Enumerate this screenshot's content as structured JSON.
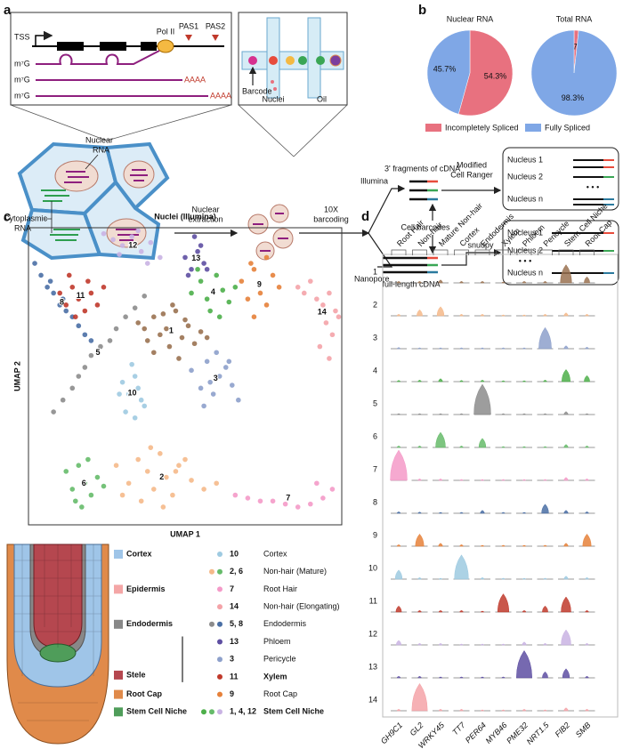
{
  "panel_labels": [
    "a",
    "b",
    "c",
    "d"
  ],
  "schematic": {
    "gene": {
      "tss": "TSS",
      "pol": "Pol II",
      "pas": [
        "PAS1",
        "PAS2"
      ],
      "cap": [
        "m⁷G",
        "m⁷G",
        "m⁷G"
      ],
      "polya": [
        "AAAA",
        "AAAA"
      ]
    },
    "droplet": {
      "barcode": "Barcode",
      "nuclei": "Nuclei",
      "oil": "Oil"
    },
    "cell": {
      "nuclear_rna": [
        "Nuclear",
        "RNA"
      ],
      "cytoplasmic_rna": [
        "Cytoplasmic",
        "RNA"
      ]
    },
    "steps": {
      "extraction": [
        "Nuclear",
        "extraction"
      ],
      "barcoding": [
        "10X",
        "barcoding"
      ],
      "illumina": "Illumina",
      "nanopore": "Nanopore",
      "fragments": "3' fragments of cDNA",
      "full_length": "full-length cDNA",
      "cell_barcodes": "Cell barcodes",
      "cell_ranger": [
        "Modified",
        "Cell Ranger"
      ],
      "snuupy": "snuupy"
    },
    "outputs": [
      {
        "nuclei": [
          "Nucleus 1",
          "Nucleus 2",
          "Nucleus n"
        ],
        "ellipsis": "• • •"
      },
      {
        "nuclei": [
          "Nucleus 1",
          "Nucleus 2",
          "Nucleus n"
        ],
        "ellipsis": "• • •"
      }
    ]
  },
  "root_legend": {
    "tissues": [
      {
        "name": "Cortex",
        "color": "#9fc5e8"
      },
      {
        "name": "Epidermis",
        "color": "#f4a6a6"
      },
      {
        "name": "Endodermis",
        "color": "#888888"
      },
      {
        "name": "Stele",
        "color": "#b5474f"
      },
      {
        "name": "Root Cap",
        "color": "#e08a4a"
      },
      {
        "name": "Stem Cell Niche",
        "color": "#4f9d5a"
      }
    ],
    "clusters": [
      {
        "ids": "10",
        "name": "Cortex",
        "colors": [
          "#9ecae1"
        ]
      },
      {
        "ids": "2, 6",
        "name": "Non-hair (Mature)",
        "colors": [
          "#f5b98a",
          "#66bb6a"
        ]
      },
      {
        "ids": "7",
        "name": "Root Hair",
        "colors": [
          "#f49ac8"
        ]
      },
      {
        "ids": "14",
        "name": "Non-hair (Elongating)",
        "colors": [
          "#f4a3a8"
        ]
      },
      {
        "ids": "5, 8",
        "name": "Endodermis",
        "colors": [
          "#8c8c8c",
          "#4a6fa5"
        ]
      },
      {
        "ids": "13",
        "name": "Phloem",
        "colors": [
          "#5e4fa2"
        ]
      },
      {
        "ids": "3",
        "name": "Pericycle",
        "colors": [
          "#8da0cb"
        ]
      },
      {
        "ids": "11",
        "name": "Xylem",
        "colors": [
          "#c0392b"
        ]
      },
      {
        "ids": "9",
        "name": "Root Cap",
        "colors": [
          "#e6813a"
        ]
      },
      {
        "ids": "1, 4, 12",
        "name": "Stem Cell Niche",
        "colors": [
          "#4daf4a",
          "#66bb6a",
          "#c9b3e3"
        ]
      }
    ]
  },
  "chart_data": [
    {
      "type": "pie",
      "title": "Nuclear RNA",
      "categories": [
        "Incompletely Spliced",
        "Fully Spliced"
      ],
      "values": [
        54.3,
        45.7
      ],
      "value_labels": [
        "54.3%",
        "45.7%"
      ],
      "colors": [
        "#e8717f",
        "#7fa7e6"
      ]
    },
    {
      "type": "pie",
      "title": "Total RNA",
      "values": [
        1.7,
        98.3
      ],
      "value_labels": [
        "1.7%",
        "98.3%"
      ],
      "colors": [
        "#e8717f",
        "#7fa7e6"
      ]
    },
    {
      "type": "scatter",
      "title": "Nuclei (Illumina)",
      "x_label": "UMAP 1",
      "y_label": "UMAP 2",
      "xlim": [
        0,
        100
      ],
      "ylim": [
        0,
        100
      ],
      "series": [
        {
          "name": "1",
          "color": "#9a7251",
          "x": [
            35,
            38,
            40,
            42,
            44,
            45,
            47,
            49,
            51,
            53,
            55,
            40,
            46,
            50,
            43,
            57,
            37,
            48
          ],
          "y": [
            68,
            62,
            70,
            64,
            66,
            60,
            72,
            63,
            67,
            61,
            65,
            58,
            74,
            69,
            71,
            63,
            66,
            56
          ]
        },
        {
          "name": "2",
          "color": "#f5b98a",
          "x": [
            28,
            32,
            35,
            38,
            40,
            42,
            44,
            46,
            48,
            52,
            56,
            60,
            36,
            43,
            50,
            30,
            39,
            47
          ],
          "y": [
            20,
            14,
            22,
            18,
            12,
            24,
            16,
            10,
            20,
            15,
            12,
            14,
            8,
            6,
            22,
            10,
            26,
            18
          ]
        },
        {
          "name": "3",
          "color": "#8da0cb",
          "x": [
            52,
            55,
            57,
            59,
            61,
            63,
            65,
            67,
            56,
            60,
            64,
            58
          ],
          "y": [
            52,
            46,
            55,
            44,
            50,
            53,
            47,
            42,
            40,
            58,
            55,
            48
          ]
        },
        {
          "name": "4",
          "color": "#4daf4a",
          "x": [
            52,
            55,
            57,
            60,
            62,
            64,
            58,
            66,
            54,
            61
          ],
          "y": [
            78,
            82,
            76,
            84,
            79,
            75,
            72,
            80,
            86,
            70
          ]
        },
        {
          "name": "5",
          "color": "#8c8c8c",
          "x": [
            8,
            11,
            14,
            16,
            18,
            20,
            23,
            26,
            28,
            31,
            34,
            37
          ],
          "y": [
            38,
            42,
            46,
            50,
            53,
            57,
            60,
            62,
            66,
            70,
            73,
            77
          ]
        },
        {
          "name": "6",
          "color": "#66bb6a",
          "x": [
            12,
            14,
            16,
            18,
            20,
            22,
            15,
            19,
            24,
            17
          ],
          "y": [
            18,
            12,
            20,
            14,
            10,
            16,
            8,
            22,
            13,
            6
          ]
        },
        {
          "name": "7",
          "color": "#f49ac8",
          "x": [
            66,
            70,
            74,
            78,
            82,
            86,
            90,
            94,
            97,
            92
          ],
          "y": [
            10,
            9,
            8,
            8,
            7,
            6,
            7,
            9,
            12,
            14
          ]
        },
        {
          "name": "8",
          "color": "#4a6fa5",
          "x": [
            2,
            4,
            6,
            8,
            10,
            12,
            14,
            16,
            18,
            20,
            7,
            11
          ],
          "y": [
            88,
            84,
            80,
            78,
            74,
            72,
            70,
            67,
            64,
            62,
            82,
            76
          ]
        },
        {
          "name": "9",
          "color": "#e6813a",
          "x": [
            68,
            70,
            72,
            74,
            76,
            78,
            80,
            72,
            76,
            71
          ],
          "y": [
            82,
            76,
            86,
            78,
            74,
            84,
            80,
            70,
            90,
            88
          ]
        },
        {
          "name": "10",
          "color": "#9ecae1",
          "x": [
            30,
            32,
            34,
            36,
            31,
            35,
            33,
            37,
            29,
            34
          ],
          "y": [
            48,
            44,
            50,
            42,
            38,
            46,
            54,
            40,
            44,
            36
          ]
        },
        {
          "name": "11",
          "color": "#c0392b",
          "x": [
            10,
            12,
            14,
            16,
            18,
            20,
            22,
            24,
            15,
            19,
            13
          ],
          "y": [
            78,
            74,
            80,
            76,
            72,
            78,
            74,
            80,
            70,
            82,
            84
          ]
        },
        {
          "name": "12",
          "color": "#c9b3e3",
          "x": [
            24,
            27,
            30,
            33,
            36,
            39,
            42,
            35,
            29,
            38
          ],
          "y": [
            98,
            96,
            94,
            97,
            92,
            95,
            90,
            99,
            91,
            88
          ]
        },
        {
          "name": "13",
          "color": "#5e4fa2",
          "x": [
            50,
            52,
            54,
            56,
            51,
            55,
            53,
            57
          ],
          "y": [
            90,
            86,
            92,
            88,
            84,
            94,
            97,
            86
          ]
        },
        {
          "name": "14",
          "color": "#f4a3a8",
          "x": [
            86,
            88,
            90,
            92,
            94,
            96,
            98,
            95,
            97,
            93,
            96,
            99
          ],
          "y": [
            80,
            78,
            82,
            76,
            74,
            78,
            72,
            68,
            64,
            60,
            56,
            70
          ]
        }
      ]
    },
    {
      "type": "violin",
      "rows": [
        "1",
        "2",
        "3",
        "4",
        "5",
        "6",
        "7",
        "8",
        "9",
        "10",
        "11",
        "12",
        "13",
        "14"
      ],
      "row_colors": [
        "#9a7251",
        "#f5b98a",
        "#8da0cb",
        "#4daf4a",
        "#8c8c8c",
        "#66bb6a",
        "#f49ac8",
        "#4a6fa5",
        "#e6813a",
        "#9ecae1",
        "#c0392b",
        "#c9b3e3",
        "#5e4fa2",
        "#f4a3a8"
      ],
      "series": [
        {
          "name": "GH9C1",
          "cell_type": "Root Hair",
          "values": [
            0.05,
            0.05,
            0.04,
            0.04,
            0.03,
            0.05,
            1.0,
            0.05,
            0.05,
            0.3,
            0.2,
            0.15,
            0.05,
            0.05
          ]
        },
        {
          "name": "GL2",
          "cell_type": "Non-hair",
          "values": [
            0.05,
            0.2,
            0.03,
            0.05,
            0.03,
            0.05,
            0.05,
            0.04,
            0.4,
            0.05,
            0.05,
            0.05,
            0.05,
            0.9
          ]
        },
        {
          "name": "WRKY45",
          "cell_type": "Mature Non-hair",
          "values": [
            0.1,
            0.3,
            0.03,
            0.1,
            0.03,
            0.5,
            0.05,
            0.03,
            0.1,
            0.03,
            0.05,
            0.05,
            0.03,
            0.05
          ]
        },
        {
          "name": "TT7",
          "cell_type": "Cortex",
          "values": [
            0.05,
            0.05,
            0.03,
            0.04,
            0.03,
            0.05,
            0.03,
            0.03,
            0.05,
            0.8,
            0.05,
            0.03,
            0.03,
            0.05
          ]
        },
        {
          "name": "PER64",
          "cell_type": "Endodermis",
          "values": [
            0.05,
            0.05,
            0.03,
            0.05,
            1.0,
            0.3,
            0.03,
            0.1,
            0.03,
            0.05,
            0.03,
            0.03,
            0.03,
            0.03
          ]
        },
        {
          "name": "MYB46",
          "cell_type": "Xylem",
          "values": [
            0.03,
            0.03,
            0.03,
            0.03,
            0.03,
            0.03,
            0.03,
            0.03,
            0.03,
            0.03,
            0.6,
            0.03,
            0.03,
            0.03
          ]
        },
        {
          "name": "PME32",
          "cell_type": "Phloem",
          "values": [
            0.05,
            0.03,
            0.03,
            0.03,
            0.03,
            0.03,
            0.03,
            0.03,
            0.03,
            0.03,
            0.05,
            0.1,
            0.9,
            0.05
          ]
        },
        {
          "name": "NRT1.5",
          "cell_type": "Pericycle",
          "values": [
            0.05,
            0.05,
            0.7,
            0.05,
            0.03,
            0.03,
            0.03,
            0.3,
            0.03,
            0.03,
            0.2,
            0.05,
            0.2,
            0.03
          ]
        },
        {
          "name": "FIB2",
          "cell_type": "Stem Cell Niche",
          "values": [
            0.6,
            0.1,
            0.1,
            0.4,
            0.1,
            0.1,
            0.1,
            0.1,
            0.1,
            0.1,
            0.5,
            0.5,
            0.3,
            0.1
          ]
        },
        {
          "name": "SMB",
          "cell_type": "Root Cap",
          "values": [
            0.2,
            0.05,
            0.05,
            0.2,
            0.03,
            0.05,
            0.05,
            0.05,
            0.4,
            0.05,
            0.05,
            0.05,
            0.05,
            0.05
          ]
        }
      ]
    }
  ]
}
